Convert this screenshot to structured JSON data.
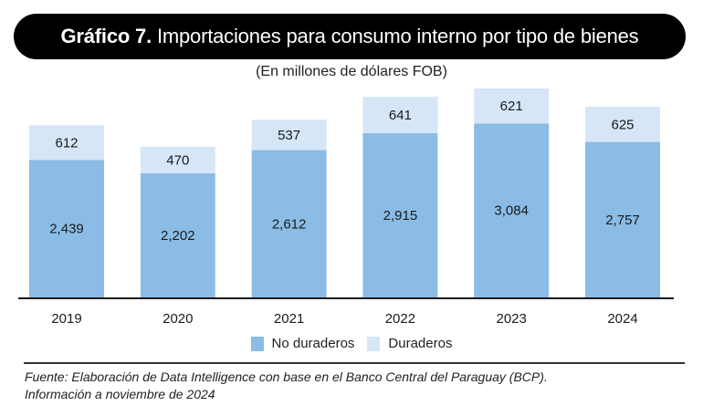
{
  "header": {
    "title_bold": "Gráfico 7.",
    "title_rest": "Importaciones para consumo interno por tipo de bienes",
    "subtitle": "(En millones de dólares FOB)"
  },
  "colors": {
    "no_duraderos": "#8bbce6",
    "duraderos": "#d6e6f7",
    "axis": "#1a1a1a"
  },
  "chart_data": {
    "type": "bar",
    "stacked": true,
    "title": "Gráfico 7. Importaciones para consumo interno por tipo de bienes",
    "subtitle": "(En millones de dólares FOB)",
    "xlabel": "",
    "ylabel": "",
    "categories": [
      "2019",
      "2020",
      "2021",
      "2022",
      "2023",
      "2024"
    ],
    "series": [
      {
        "name": "No duraderos",
        "values": [
          2439,
          2202,
          2612,
          2915,
          3084,
          2757
        ],
        "labels": [
          "2,439",
          "2,202",
          "2,612",
          "2,915",
          "3,084",
          "2,757"
        ]
      },
      {
        "name": "Duraderos",
        "values": [
          612,
          470,
          537,
          641,
          621,
          625
        ],
        "labels": [
          "612",
          "470",
          "537",
          "641",
          "621",
          "625"
        ]
      }
    ],
    "ylim": [
      0,
      3705
    ],
    "grid": false,
    "legend_position": "bottom-center"
  },
  "legend": {
    "items": [
      {
        "label": "No duraderos"
      },
      {
        "label": "Duraderos"
      }
    ]
  },
  "footer": {
    "source_line1": "Fuente: Elaboración de Data Intelligence con base en el Banco Central del Paraguay (BCP).",
    "source_line2": "Información a noviembre de 2024"
  }
}
